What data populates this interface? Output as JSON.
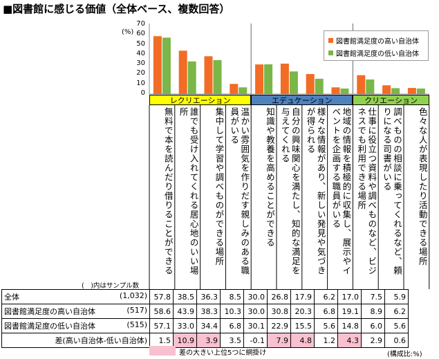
{
  "title": "■図書館に感じる価値（全体ベース、複数回答）",
  "unit_top": "(%)",
  "legend": {
    "high": "図書館満足度の高い自治体",
    "low": "図書館満足度の低い自治体"
  },
  "colors": {
    "high": "#f26c25",
    "low": "#7ab648",
    "band_recreation": "#ffff00",
    "band_education": "#4f81bd",
    "band_creation": "#92d050",
    "highlight": "#f9c1cf"
  },
  "groups": [
    {
      "label": "レクリエーション",
      "start": 0,
      "end": 3
    },
    {
      "label": "エデュケーション",
      "start": 4,
      "end": 7
    },
    {
      "label": "クリエーション",
      "start": 8,
      "end": 10
    }
  ],
  "sample_note": "(　)内はサンプル数",
  "rows": {
    "total": {
      "label": "全体",
      "n": "(1,032)"
    },
    "high": {
      "label": "図書館満足度の高い自治体",
      "n": "(517)"
    },
    "low": {
      "label": "図書館満足度の低い自治体",
      "n": "(515)"
    },
    "diff": {
      "label": "差(高い自治体-低い自治体)"
    }
  },
  "chart_data": {
    "type": "bar",
    "title": "",
    "ylabel": "(%)",
    "ylim": [
      0,
      70
    ],
    "yticks": [
      0,
      10,
      20,
      30,
      40,
      50,
      60,
      70
    ],
    "grid": false,
    "legend_position": "top-right",
    "categories": [
      "無料で本を読んだり借りることができる",
      "誰でも受け入れてくれる居心地のいい場所",
      "集中して学習や調べものができる場所",
      "温かい雰囲気を作りだす親しみのある職員がいる",
      "知識や教養を高めることができる",
      "自分の興味関心を満たし、知的な満足を与えてくれる",
      "様々な情報があり、新しい発見や気づきが得られる",
      "地域の情報を積極的に収集し、展示やイベントを企画する職員がいる",
      "仕事に役立つ資料や調べものなど、ビジネスでも利用できる場所",
      "調べものの相談に乗ってくれるなど、頼りになる司書がいる",
      "色々な人が表現したり活動できる場所"
    ],
    "series": [
      {
        "name": "図書館満足度の高い自治体",
        "values": [
          58.6,
          43.9,
          38.3,
          10.3,
          30.0,
          30.8,
          20.3,
          6.8,
          19.1,
          8.9,
          6.2
        ]
      },
      {
        "name": "図書館満足度の低い自治体",
        "values": [
          57.1,
          33.0,
          34.4,
          6.8,
          30.1,
          22.9,
          15.5,
          5.6,
          14.8,
          6.0,
          5.6
        ]
      }
    ],
    "table": {
      "total": [
        "57.8",
        "38.5",
        "36.3",
        "8.5",
        "30.0",
        "26.8",
        "17.9",
        "6.2",
        "17.0",
        "7.5",
        "5.9"
      ],
      "high": [
        "58.6",
        "43.9",
        "38.3",
        "10.3",
        "30.0",
        "30.8",
        "20.3",
        "6.8",
        "19.1",
        "8.9",
        "6.2"
      ],
      "low": [
        "57.1",
        "33.0",
        "34.4",
        "6.8",
        "30.1",
        "22.9",
        "15.5",
        "5.6",
        "14.8",
        "6.0",
        "5.6"
      ],
      "diff": [
        "1.5",
        "10.9",
        "3.9",
        "3.5",
        "-0.1",
        "7.9",
        "4.8",
        "1.2",
        "4.3",
        "2.9",
        "0.6"
      ]
    },
    "diff_highlight": [
      1,
      2,
      5,
      6,
      8
    ]
  },
  "notes": {
    "highlight": "差の大きい上位5つに網掛け",
    "unit": "(構成比:%)"
  }
}
